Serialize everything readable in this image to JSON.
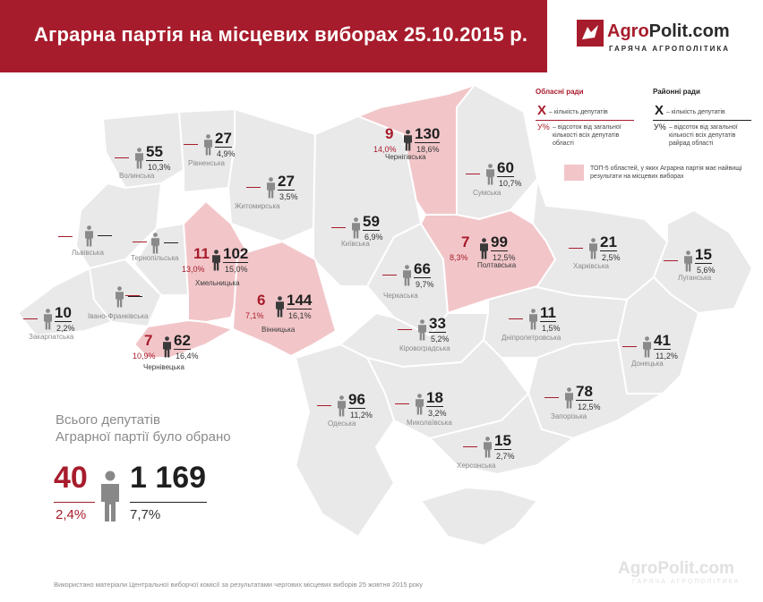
{
  "header": {
    "title": "Аграрна партія на місцевих виборах 25.10.2015 р."
  },
  "logo": {
    "name_a": "Agro",
    "name_b": "Polit.com",
    "tagline": "ГАРЯЧА АГРОПОЛІТИКА"
  },
  "colors": {
    "brand": "#a71c2c",
    "region": "#e9e9e9",
    "highlight": "#f2c6c9",
    "border": "#ffffff",
    "icon": "#777777"
  },
  "legend": {
    "oblast_title": "Обласні ради",
    "raion_title": "Районні ради",
    "x_symbol": "X",
    "x_desc": "– кількість депутатів",
    "y_symbol": "У%",
    "y_desc_oblast": "– відсоток від загальної кількості всіх депутатів області",
    "y_desc_raion": "– відсоток від загальної кількості всіх депутатів райрад області",
    "top5_desc": "ТОП-5 областей, у яких Аграрна партія має найвищі результати на місцевих виборах"
  },
  "regions": {
    "volyn": {
      "name": "Волинська",
      "raion": "55",
      "raion_pct": "10,3%"
    },
    "rivne": {
      "name": "Рівненська",
      "raion": "27",
      "raion_pct": "4,9%"
    },
    "zhytomyr": {
      "name": "Житомирська",
      "raion": "27",
      "raion_pct": "3,5%"
    },
    "chernihiv": {
      "name": "Чернігівська",
      "oblast": "9",
      "oblast_pct": "14,0%",
      "raion": "130",
      "raion_pct": "18,6%"
    },
    "sumy": {
      "name": "Сумська",
      "raion": "60",
      "raion_pct": "10,7%"
    },
    "lviv": {
      "name": "Львівська"
    },
    "ternopil": {
      "name": "Тернопільська"
    },
    "khmelnytskyi": {
      "name": "Хмельницька",
      "oblast": "11",
      "oblast_pct": "13,0%",
      "raion": "102",
      "raion_pct": "15,0%"
    },
    "kyiv": {
      "name": "Київська",
      "raion": "59",
      "raion_pct": "6,9%"
    },
    "poltava": {
      "name": "Полтавська",
      "oblast": "7",
      "oblast_pct": "8,3%",
      "raion": "99",
      "raion_pct": "12,5%"
    },
    "kharkiv": {
      "name": "Харківська",
      "raion": "21",
      "raion_pct": "2,5%"
    },
    "luhansk": {
      "name": "Луганська",
      "raion": "15",
      "raion_pct": "5,6%"
    },
    "ivano": {
      "name": "Івано-Франківська"
    },
    "cherkasy": {
      "name": "Черкаська",
      "raion": "66",
      "raion_pct": "9,7%"
    },
    "zakarpattia": {
      "name": "Закарпатська",
      "raion": "10",
      "raion_pct": "2,2%"
    },
    "vinnytsia": {
      "name": "Вінницька",
      "oblast": "6",
      "oblast_pct": "7,1%",
      "raion": "144",
      "raion_pct": "16,1%"
    },
    "chernivtsi": {
      "name": "Чернівецька",
      "oblast": "7",
      "oblast_pct": "10,9%",
      "raion": "62",
      "raion_pct": "16,4%"
    },
    "kirovohrad": {
      "name": "Кіровоградська",
      "raion": "33",
      "raion_pct": "5,2%"
    },
    "dnipro": {
      "name": "Дніпропетровська",
      "raion": "11",
      "raion_pct": "1,5%"
    },
    "donetsk": {
      "name": "Донецька",
      "raion": "41",
      "raion_pct": "11,2%"
    },
    "odesa": {
      "name": "Одеська",
      "raion": "96",
      "raion_pct": "11,2%"
    },
    "mykolaiv": {
      "name": "Миколаївська",
      "raion": "18",
      "raion_pct": "3,2%"
    },
    "zaporizhzhia": {
      "name": "Запорізька",
      "raion": "78",
      "raion_pct": "12,5%"
    },
    "kherson": {
      "name": "Херсонська",
      "raion": "15",
      "raion_pct": "2,7%"
    }
  },
  "totals": {
    "heading_line1": "Всього депутатів",
    "heading_line2": "Аграрної партії було обрано",
    "oblast_total": "40",
    "oblast_pct": "2,4%",
    "raion_total": "1 169",
    "raion_pct": "7,7%"
  },
  "footer": {
    "source": "Використано матеріали Центральної виборчої комісії за результатами чергових місцевих виборів 25 жовтня 2015 року"
  },
  "watermark": {
    "name": "AgroPolit.com",
    "tagline": "ГАРЯЧА АГРОПОЛІТИКА"
  }
}
